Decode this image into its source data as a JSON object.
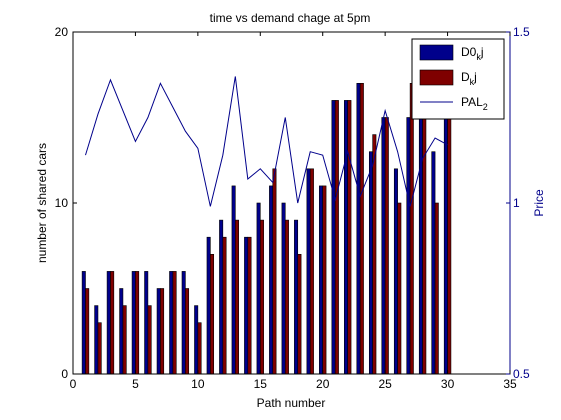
{
  "chart_data": {
    "type": "bar",
    "title": "time vs demand chage at 5pm",
    "xlabel": "Path number",
    "ylabel": "number of shared cars",
    "y2label": "Price",
    "xlim": [
      0,
      35
    ],
    "ylim": [
      0,
      20
    ],
    "y2lim": [
      0.5,
      1.5
    ],
    "xticks": [
      "0",
      "5",
      "10",
      "15",
      "20",
      "25",
      "30",
      "35"
    ],
    "yticks": [
      "0",
      "10",
      "20"
    ],
    "y2ticks": [
      "0.5",
      "1",
      "1.5"
    ],
    "legend_position": "top-right",
    "grid": false,
    "x": [
      1,
      2,
      3,
      4,
      5,
      6,
      7,
      8,
      9,
      10,
      11,
      12,
      13,
      14,
      15,
      16,
      17,
      18,
      19,
      20,
      21,
      22,
      23,
      24,
      25,
      26,
      27,
      28,
      29,
      30
    ],
    "series": [
      {
        "name": "D0_kj",
        "legend_main": "D0",
        "legend_sub": "k",
        "legend_tail": "j",
        "color": "#00008B",
        "values": [
          6,
          4,
          6,
          5,
          6,
          6,
          5,
          6,
          6,
          4,
          8,
          9,
          11,
          8,
          10,
          11,
          10,
          9,
          12,
          11,
          16,
          16,
          17,
          13,
          15,
          12,
          15,
          15,
          13,
          15
        ]
      },
      {
        "name": "D_kj",
        "legend_main": "D",
        "legend_sub": "k",
        "legend_tail": "j",
        "color": "#7F0000",
        "values": [
          5,
          3,
          6,
          4,
          6,
          4,
          5,
          6,
          5,
          3,
          7,
          8,
          9,
          8,
          9,
          12,
          9,
          7,
          12,
          11,
          16,
          16,
          17,
          14,
          15,
          10,
          17,
          15,
          10,
          15
        ]
      },
      {
        "name": "PAL_2",
        "legend_main": "PAL",
        "legend_sub": "2",
        "legend_tail": "",
        "color": "#00008B",
        "axis": "right",
        "values": [
          1.14,
          1.26,
          1.36,
          1.27,
          1.18,
          1.25,
          1.35,
          1.28,
          1.21,
          1.16,
          0.99,
          1.14,
          1.37,
          1.07,
          1.1,
          1.06,
          1.25,
          1.0,
          1.15,
          1.14,
          1.01,
          1.15,
          1.02,
          1.11,
          1.27,
          1.15,
          0.99,
          1.13,
          1.19,
          1.17
        ]
      }
    ]
  }
}
